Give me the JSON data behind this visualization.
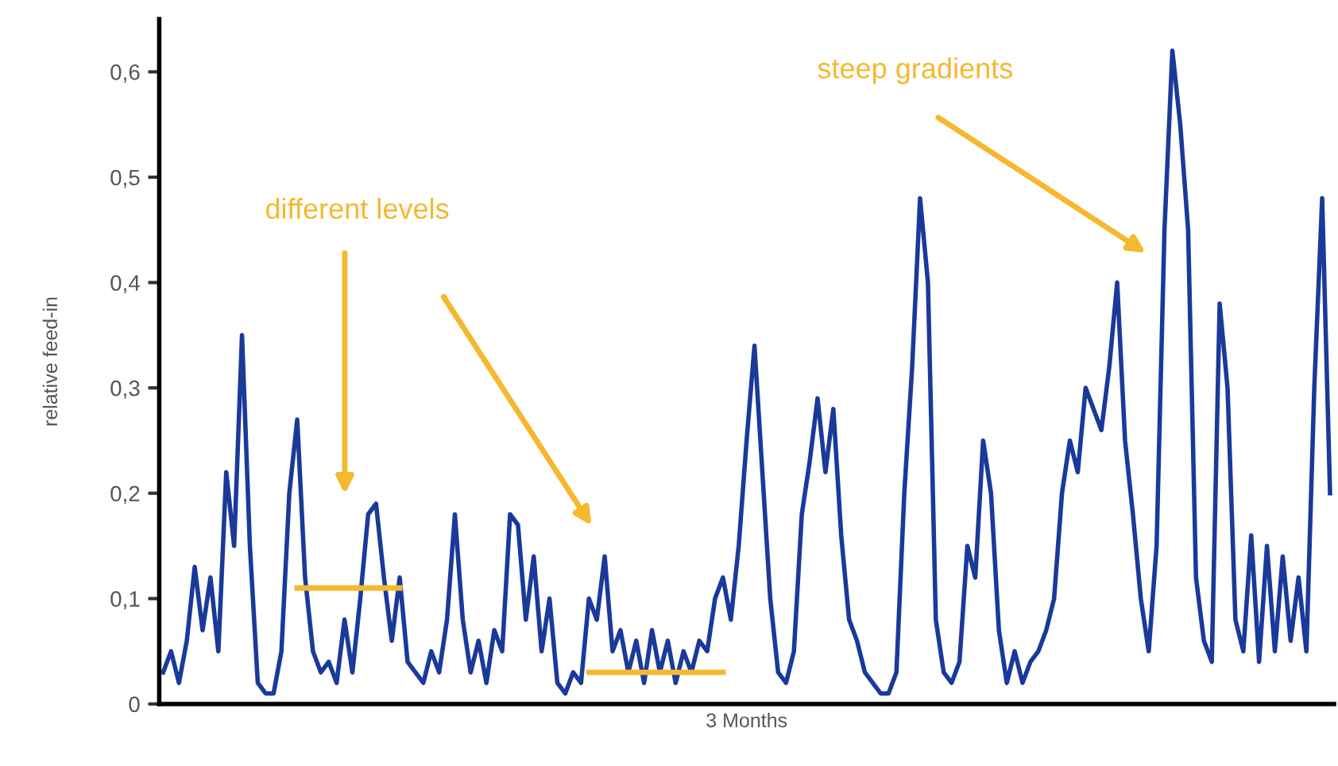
{
  "chart_data": {
    "type": "line",
    "ylabel": "relative feed-in",
    "xlabel": "3 Months",
    "categories": [
      null,
      null,
      null,
      null,
      null,
      null,
      null,
      null,
      null,
      null,
      null,
      null,
      null,
      null,
      null,
      null,
      null,
      null,
      null,
      null,
      null,
      null,
      null,
      null,
      null,
      null,
      null,
      null,
      null,
      null,
      null,
      null,
      null,
      null,
      null,
      null,
      null,
      null,
      null,
      null,
      null,
      null,
      null,
      null,
      null,
      null,
      null,
      null,
      null,
      null,
      null,
      null,
      null,
      null,
      null,
      null,
      null,
      null,
      null,
      null,
      null,
      null,
      null,
      null,
      null,
      null,
      null,
      null,
      null,
      null,
      null,
      null,
      null,
      null,
      null,
      null,
      null,
      null,
      null,
      null,
      null,
      null,
      null,
      null,
      null,
      null,
      null,
      null,
      null,
      null,
      null,
      null,
      null,
      null,
      null,
      null,
      null,
      null,
      null,
      null,
      null,
      null,
      null,
      null,
      null,
      null,
      null,
      null,
      null,
      null,
      null,
      null,
      null,
      null,
      null,
      null,
      null,
      null,
      null,
      null,
      null,
      null,
      null,
      null,
      null,
      null,
      null,
      null,
      null,
      null,
      null,
      null,
      null,
      null,
      null,
      null,
      null,
      null,
      null,
      null,
      null,
      null,
      null,
      null,
      null,
      null,
      null,
      null,
      null
    ],
    "series": [
      {
        "color": "#1a3a9a",
        "values": [
          0.03,
          0.05,
          0.02,
          0.06,
          0.13,
          0.07,
          0.12,
          0.05,
          0.22,
          0.15,
          0.35,
          0.15,
          0.02,
          0.01,
          0.01,
          0.05,
          0.2,
          0.27,
          0.12,
          0.05,
          0.03,
          0.04,
          0.02,
          0.08,
          0.03,
          0.1,
          0.18,
          0.19,
          0.12,
          0.06,
          0.12,
          0.04,
          0.03,
          0.02,
          0.05,
          0.03,
          0.08,
          0.18,
          0.08,
          0.03,
          0.06,
          0.02,
          0.07,
          0.05,
          0.18,
          0.17,
          0.08,
          0.14,
          0.05,
          0.1,
          0.02,
          0.01,
          0.03,
          0.02,
          0.1,
          0.08,
          0.14,
          0.05,
          0.07,
          0.03,
          0.06,
          0.02,
          0.07,
          0.03,
          0.06,
          0.02,
          0.05,
          0.03,
          0.06,
          0.05,
          0.1,
          0.12,
          0.08,
          0.15,
          0.25,
          0.34,
          0.22,
          0.1,
          0.03,
          0.02,
          0.05,
          0.18,
          0.23,
          0.29,
          0.22,
          0.28,
          0.16,
          0.08,
          0.06,
          0.03,
          0.02,
          0.01,
          0.01,
          0.03,
          0.2,
          0.32,
          0.48,
          0.4,
          0.08,
          0.03,
          0.02,
          0.04,
          0.15,
          0.12,
          0.25,
          0.2,
          0.07,
          0.02,
          0.05,
          0.02,
          0.04,
          0.05,
          0.07,
          0.1,
          0.2,
          0.25,
          0.22,
          0.3,
          0.28,
          0.26,
          0.32,
          0.4,
          0.25,
          0.18,
          0.1,
          0.05,
          0.15,
          0.45,
          0.62,
          0.55,
          0.45,
          0.12,
          0.06,
          0.04,
          0.38,
          0.3,
          0.08,
          0.05,
          0.16,
          0.04,
          0.15,
          0.05,
          0.14,
          0.06,
          0.12,
          0.05,
          0.3,
          0.48,
          0.2
        ]
      },
      {
        "color": "#f5b82e",
        "values": [
          null,
          null,
          null,
          null,
          null,
          null,
          null,
          null,
          null,
          null,
          null,
          null,
          null,
          null,
          null,
          null,
          null,
          0.11,
          0.11,
          0.11,
          0.11,
          0.11,
          0.11,
          0.11,
          0.11,
          0.11,
          0.11,
          0.11,
          0.11,
          0.11,
          0.11,
          null,
          null,
          null,
          null,
          null,
          null,
          null,
          null,
          null,
          null,
          null,
          null,
          null,
          null,
          null,
          null,
          null,
          null,
          null,
          null,
          null,
          null,
          null,
          0.03,
          0.03,
          0.03,
          0.03,
          0.03,
          0.03,
          0.03,
          0.03,
          0.03,
          0.03,
          0.03,
          0.03,
          0.03,
          0.03,
          0.03,
          0.03,
          0.03,
          0.03,
          null,
          null,
          null,
          null,
          null,
          null,
          null,
          null,
          null,
          null,
          null,
          null,
          null,
          null,
          null,
          null,
          null,
          null,
          null,
          null,
          null,
          null,
          null,
          null,
          null,
          null,
          null,
          null,
          null,
          null,
          null,
          null,
          null,
          null,
          null,
          null,
          null,
          null,
          null,
          null,
          null,
          null,
          null,
          null,
          null,
          null,
          null,
          null,
          null,
          null,
          null,
          null,
          null,
          null,
          null,
          null,
          null,
          null,
          null,
          null,
          null,
          null,
          null,
          null,
          null,
          null,
          null,
          null,
          null,
          null,
          null,
          null,
          null,
          null,
          null,
          null,
          null
        ]
      }
    ],
    "ylim": [
      0,
      0.65
    ],
    "yticks": [
      0,
      {
        "value": 0.1,
        "label": "0,1"
      },
      {
        "value": 0.2,
        "label": "0,2"
      },
      {
        "value": 0.3,
        "label": "0,3"
      },
      {
        "value": 0.4,
        "label": "0,4"
      },
      {
        "value": 0.5,
        "label": "0,5"
      },
      {
        "value": 0.6,
        "label": "0,6"
      }
    ],
    "tick_labels": "y",
    "grid": false,
    "legend": false,
    "marker": "none",
    "line_style": "solid",
    "annotations": [
      "different levels",
      "steep gradients"
    ]
  }
}
